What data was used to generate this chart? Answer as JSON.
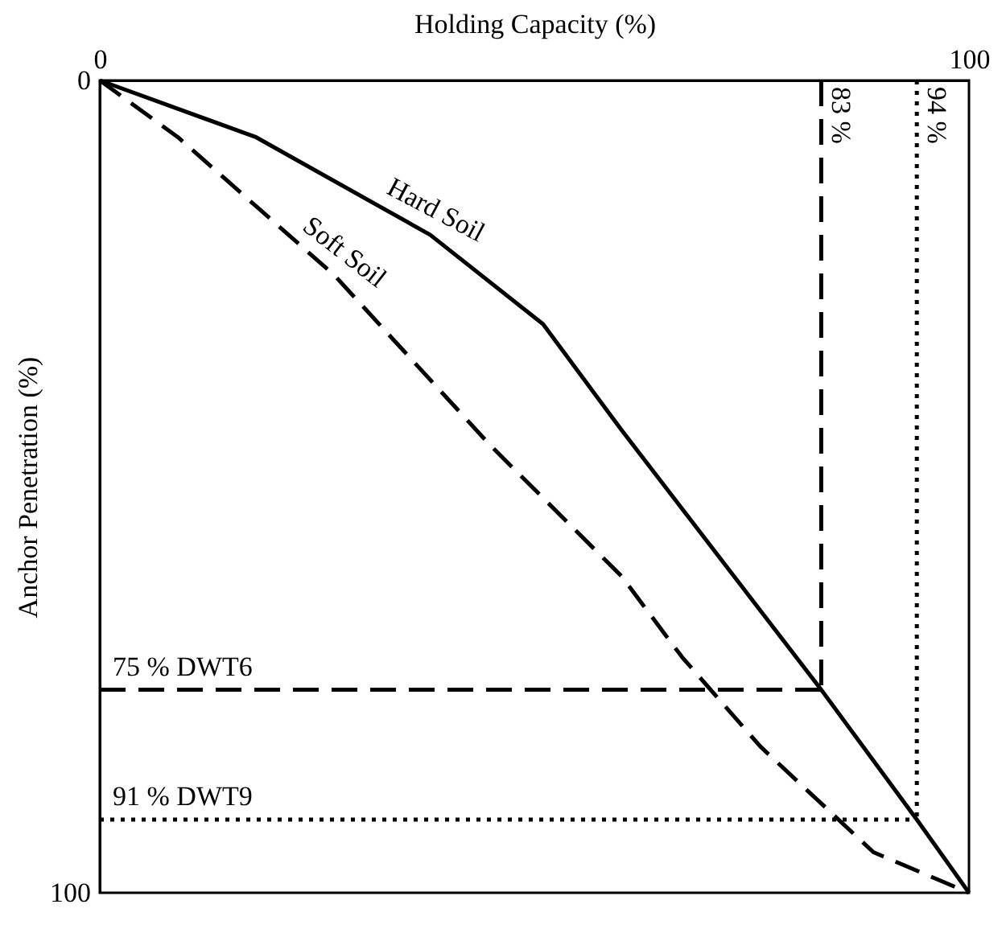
{
  "chart_data": {
    "type": "line",
    "xlabel": "Holding Capacity (%)",
    "ylabel": "Anchor Penetration (%)",
    "xlim": [
      0,
      100
    ],
    "xticks": [
      0,
      100
    ],
    "ylim": [
      100,
      0
    ],
    "yticks": [
      0,
      100
    ],
    "grid": false,
    "legend": false,
    "marker": "none",
    "series": [
      {
        "name": "Hard Soil",
        "color": "#000000",
        "line_style": "solid",
        "x": [
          0,
          18,
          38,
          51,
          60,
          83,
          94,
          100
        ],
        "values": [
          0,
          7,
          19,
          30,
          43,
          75,
          91,
          100
        ]
      },
      {
        "name": "Soft Soil",
        "color": "#000000",
        "line_style": "dashed",
        "x": [
          0,
          9,
          27,
          45,
          60,
          67,
          76,
          82,
          89,
          100
        ],
        "values": [
          0,
          7,
          24,
          45,
          61,
          71,
          82,
          88,
          95,
          100
        ]
      }
    ],
    "ref_lines": [
      {
        "axis": "x",
        "value": 83,
        "label": "83 %",
        "line_style": "dashed",
        "color": "#000000"
      },
      {
        "axis": "x",
        "value": 94,
        "label": "94 %",
        "line_style": "dotted",
        "color": "#000000"
      },
      {
        "axis": "y",
        "value": 75,
        "label": "75 %   DWT6",
        "line_style": "dashed",
        "color": "#000000"
      },
      {
        "axis": "y",
        "value": 91,
        "label": "91 %   DWT9",
        "line_style": "dotted",
        "color": "#000000"
      }
    ]
  }
}
